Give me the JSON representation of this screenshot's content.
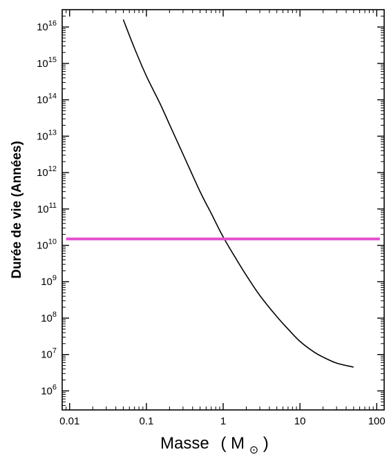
{
  "chart_data": {
    "type": "line",
    "xlabel": "Masse",
    "xlabel_unit": "M",
    "xlabel_unit_symbol": "⊙",
    "ylabel": "Durée de vie (Années)",
    "x_scale": "log",
    "y_scale": "log",
    "xlim": [
      0.008,
      125
    ],
    "ylim": [
      300000,
      30000000000000000
    ],
    "x_ticks": [
      {
        "value": 0.01,
        "label": "0.01"
      },
      {
        "value": 0.1,
        "label": "0.1"
      },
      {
        "value": 1,
        "label": "1"
      },
      {
        "value": 10,
        "label": "10"
      },
      {
        "value": 100,
        "label": "100"
      }
    ],
    "y_ticks": [
      {
        "value": 1000000,
        "base": "10",
        "exp": "6"
      },
      {
        "value": 10000000,
        "base": "10",
        "exp": "7"
      },
      {
        "value": 100000000,
        "base": "10",
        "exp": "8"
      },
      {
        "value": 1000000000,
        "base": "10",
        "exp": "9"
      },
      {
        "value": 10000000000,
        "base": "10",
        "exp": "10"
      },
      {
        "value": 100000000000,
        "base": "10",
        "exp": "11"
      },
      {
        "value": 1000000000000,
        "base": "10",
        "exp": "12"
      },
      {
        "value": 10000000000000,
        "base": "10",
        "exp": "13"
      },
      {
        "value": 100000000000000,
        "base": "10",
        "exp": "14"
      },
      {
        "value": 1000000000000000,
        "base": "10",
        "exp": "15"
      },
      {
        "value": 10000000000000000,
        "base": "10",
        "exp": "16"
      }
    ],
    "series": [
      {
        "color": "#000000",
        "points": [
          {
            "x": 0.05,
            "y": 1.6e+16
          },
          {
            "x": 0.07,
            "y": 2600000000000000.0
          },
          {
            "x": 0.1,
            "y": 450000000000000.0
          },
          {
            "x": 0.15,
            "y": 80000000000000.0
          },
          {
            "x": 0.2,
            "y": 21000000000000.0
          },
          {
            "x": 0.3,
            "y": 3200000000000.0
          },
          {
            "x": 0.5,
            "y": 300000000000.0
          },
          {
            "x": 0.7,
            "y": 75000000000.0
          },
          {
            "x": 1,
            "y": 17000000000.0
          },
          {
            "x": 1.5,
            "y": 4000000000.0
          },
          {
            "x": 2,
            "y": 1500000000.0
          },
          {
            "x": 3,
            "y": 420000000.0
          },
          {
            "x": 5,
            "y": 110000000.0
          },
          {
            "x": 7,
            "y": 50000000.0
          },
          {
            "x": 10,
            "y": 23000000.0
          },
          {
            "x": 15,
            "y": 12000000.0
          },
          {
            "x": 20,
            "y": 8500000.0
          },
          {
            "x": 30,
            "y": 5800000.0
          },
          {
            "x": 50,
            "y": 4500000.0
          }
        ]
      },
      {
        "color": "#e54fd0",
        "points": [
          {
            "x": 0.009,
            "y": 15000000000.0
          },
          {
            "x": 110,
            "y": 15000000000.0
          }
        ]
      }
    ],
    "grid": false,
    "legend": "none"
  }
}
